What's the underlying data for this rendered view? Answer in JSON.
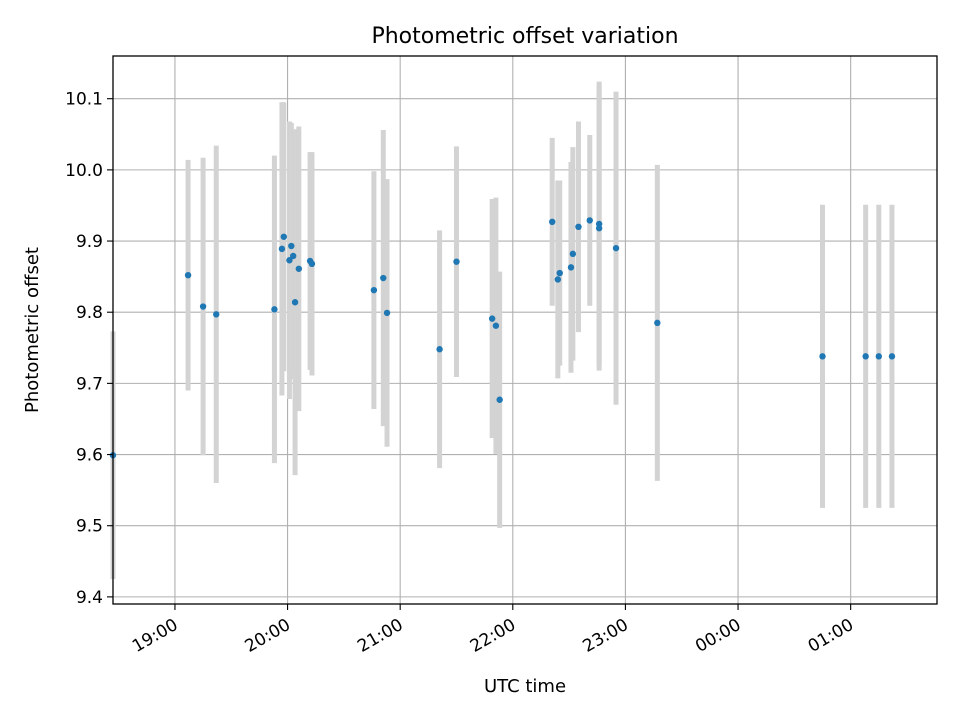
{
  "chart_data": {
    "type": "scatter",
    "title": "Photometric offset variation",
    "xlabel": "UTC time",
    "ylabel": "Photometric offset",
    "x_axis": {
      "kind": "time",
      "range": [
        "18:27",
        "01:46"
      ],
      "ticks": [
        "19:00",
        "20:00",
        "21:00",
        "22:00",
        "23:00",
        "00:00",
        "01:00"
      ]
    },
    "y_axis": {
      "range": [
        9.39,
        10.16
      ],
      "ticks": [
        9.4,
        9.5,
        9.6,
        9.7,
        9.8,
        9.9,
        10.0,
        10.1
      ],
      "tick_labels": [
        "9.4",
        "9.5",
        "9.6",
        "9.7",
        "9.8",
        "9.9",
        "10.0",
        "10.1"
      ]
    },
    "grid": true,
    "colors": {
      "points": "#1f77b4",
      "errorbars": "#d3d3d3",
      "grid": "#b0b0b0"
    },
    "points": [
      {
        "t": "18:27",
        "y": 9.599,
        "err": 0.174
      },
      {
        "t": "19:07",
        "y": 9.852,
        "err": 0.162
      },
      {
        "t": "19:15",
        "y": 9.808,
        "err": 0.209
      },
      {
        "t": "19:22",
        "y": 9.797,
        "err": 0.237
      },
      {
        "t": "19:53",
        "y": 9.804,
        "err": 0.216
      },
      {
        "t": "19:57",
        "y": 9.889,
        "err": 0.206
      },
      {
        "t": "19:58",
        "y": 9.906,
        "err": 0.189
      },
      {
        "t": "20:01",
        "y": 9.873,
        "err": 0.195
      },
      {
        "t": "20:02",
        "y": 9.893,
        "err": 0.173
      },
      {
        "t": "20:03",
        "y": 9.879,
        "err": 0.173
      },
      {
        "t": "20:04",
        "y": 9.814,
        "err": 0.243
      },
      {
        "t": "20:06",
        "y": 9.861,
        "err": 0.2
      },
      {
        "t": "20:12",
        "y": 9.872,
        "err": 0.153
      },
      {
        "t": "20:13",
        "y": 9.868,
        "err": 0.157
      },
      {
        "t": "20:46",
        "y": 9.831,
        "err": 0.167
      },
      {
        "t": "20:51",
        "y": 9.848,
        "err": 0.208
      },
      {
        "t": "20:53",
        "y": 9.799,
        "err": 0.188
      },
      {
        "t": "21:21",
        "y": 9.748,
        "err": 0.167
      },
      {
        "t": "21:30",
        "y": 9.871,
        "err": 0.162
      },
      {
        "t": "21:49",
        "y": 9.791,
        "err": 0.168
      },
      {
        "t": "21:51",
        "y": 9.781,
        "err": 0.18
      },
      {
        "t": "21:53",
        "y": 9.677,
        "err": 0.18
      },
      {
        "t": "22:21",
        "y": 9.927,
        "err": 0.118
      },
      {
        "t": "22:24",
        "y": 9.846,
        "err": 0.139
      },
      {
        "t": "22:25",
        "y": 9.855,
        "err": 0.13
      },
      {
        "t": "22:31",
        "y": 9.863,
        "err": 0.148
      },
      {
        "t": "22:32",
        "y": 9.882,
        "err": 0.15
      },
      {
        "t": "22:35",
        "y": 9.92,
        "err": 0.148
      },
      {
        "t": "22:41",
        "y": 9.929,
        "err": 0.12
      },
      {
        "t": "22:46",
        "y": 9.924,
        "err": 0.2
      },
      {
        "t": "22:46",
        "y": 9.918,
        "err": 0.2
      },
      {
        "t": "22:55",
        "y": 9.89,
        "err": 0.22
      },
      {
        "t": "23:17",
        "y": 9.785,
        "err": 0.222
      },
      {
        "t": "00:45",
        "y": 9.738,
        "err": 0.213
      },
      {
        "t": "01:08",
        "y": 9.738,
        "err": 0.213
      },
      {
        "t": "01:15",
        "y": 9.738,
        "err": 0.213
      },
      {
        "t": "01:22",
        "y": 9.738,
        "err": 0.213
      }
    ]
  }
}
